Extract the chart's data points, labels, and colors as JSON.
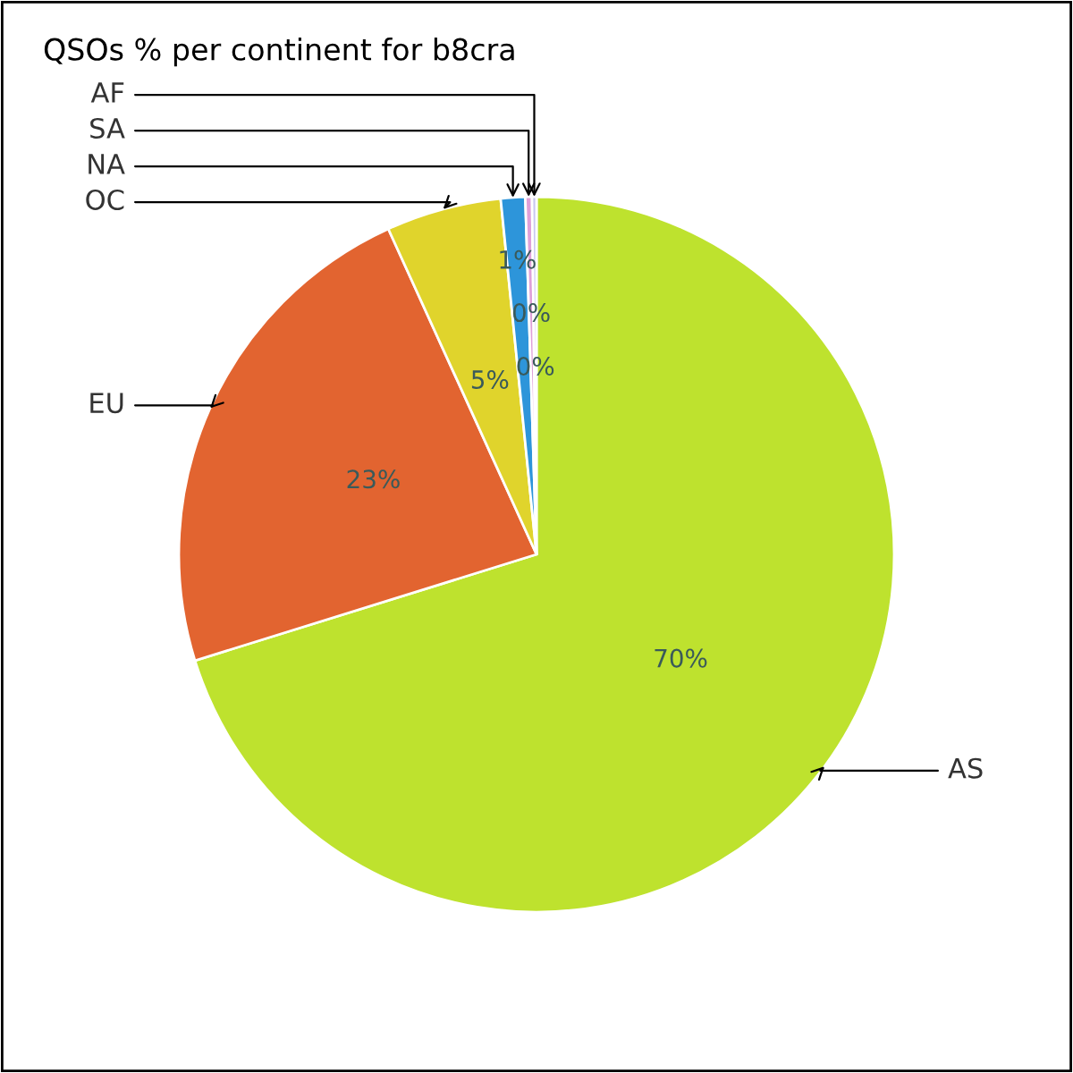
{
  "chart_data": {
    "type": "pie",
    "title": "QSOs % per continent for b8cra",
    "categories": [
      "AS",
      "EU",
      "OC",
      "NA",
      "SA",
      "AF"
    ],
    "values": [
      70.2,
      23.0,
      5.2,
      1.1,
      0.3,
      0.2
    ],
    "colors": [
      "#bee22e",
      "#e26430",
      "#e0d42c",
      "#2d95da",
      "#e0a0d8",
      "#c8c8f0"
    ],
    "value_labels": [
      "70%",
      "23%",
      "5%",
      "1%",
      "0%",
      "0%"
    ],
    "legend": false
  }
}
